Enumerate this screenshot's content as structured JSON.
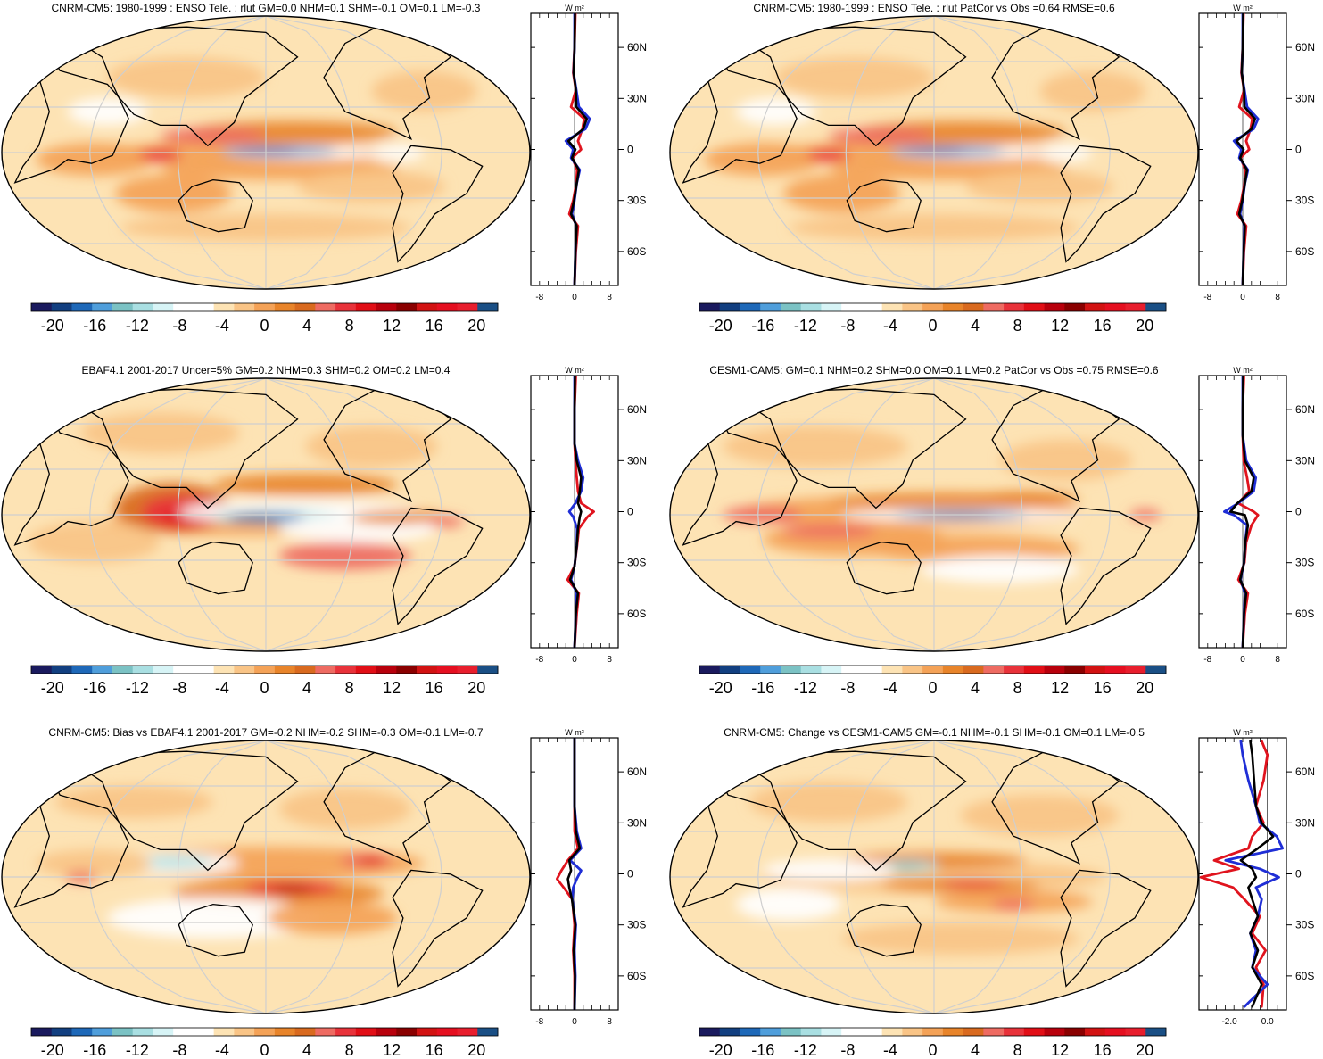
{
  "figure": {
    "colorbar": {
      "colors": [
        "#1a1a5e",
        "#123f80",
        "#1e68b8",
        "#4f9edb",
        "#7bc2c4",
        "#a9dfe2",
        "#d7f4f6",
        "#ffffff",
        "#ffffff",
        "#fde3b4",
        "#f9c486",
        "#f4a257",
        "#e8842a",
        "#d96a1f",
        "#ee6b62",
        "#e8323a",
        "#e10e16",
        "#b8000c",
        "#8a0000",
        "#d21212",
        "#e50f20",
        "#e81e2d",
        "#1a4f85"
      ],
      "tick_labels": [
        "-20",
        "-16",
        "-12",
        "-8",
        "-4",
        "0",
        "4",
        "8",
        "12",
        "16",
        "20"
      ],
      "tick_values": [
        -20,
        -16,
        -12,
        -8,
        -4,
        0,
        4,
        8,
        12,
        16,
        20
      ],
      "range": [
        -22,
        22
      ]
    },
    "profile_units": "W m²",
    "lat_labels": [
      "60N",
      "30N",
      "0",
      "30S",
      "60S"
    ],
    "lat_values": [
      60,
      30,
      0,
      -30,
      -60
    ],
    "line_colors": {
      "red": "#e0141e",
      "blue": "#1f2ed6",
      "black": "#000000"
    }
  },
  "chart_data": [
    {
      "type": "heatmap",
      "title": "CNRM-CM5: 1980-1999 : ENSO Tele. : rlut GM=0.0 NHM=0.1 SHM=-0.1 OM=0.1 LM=-0.3",
      "profile": {
        "type": "line",
        "xlim": [
          -10,
          10
        ],
        "xticks": [
          -8,
          0,
          8
        ],
        "xtick_labels": [
          "-8",
          "0",
          "8"
        ],
        "ylim": [
          -80,
          80
        ],
        "series": [
          {
            "color": "red",
            "lat": [
              -80,
              -60,
              -45,
              -38,
              -30,
              -20,
              -12,
              -5,
              0,
              5,
              12,
              18,
              25,
              35,
              45,
              60,
              80
            ],
            "value": [
              0,
              0.3,
              0.8,
              -1.2,
              -0.3,
              0.4,
              0.6,
              -0.5,
              1.5,
              0.8,
              1.8,
              2.2,
              -0.8,
              0.3,
              -0.3,
              0,
              0.2
            ]
          },
          {
            "color": "blue",
            "lat": [
              -80,
              -60,
              -45,
              -38,
              -30,
              -20,
              -12,
              -5,
              0,
              5,
              12,
              18,
              25,
              35,
              45,
              60,
              80
            ],
            "value": [
              0,
              0.2,
              0.4,
              -0.6,
              0,
              0.5,
              1.2,
              -0.8,
              -0.3,
              -2.0,
              2.5,
              3.5,
              1.0,
              0.4,
              -0.2,
              0,
              0
            ]
          },
          {
            "color": "black",
            "lat": [
              -80,
              -60,
              -45,
              -38,
              -30,
              -20,
              -12,
              -5,
              0,
              5,
              12,
              18,
              25,
              35,
              45,
              60,
              80
            ],
            "value": [
              0,
              0.2,
              0.5,
              -0.8,
              -0.1,
              0.5,
              1.0,
              -0.6,
              0.2,
              -1.4,
              2.0,
              2.8,
              0.4,
              0.3,
              -0.2,
              0,
              0.1
            ]
          }
        ]
      }
    },
    {
      "type": "heatmap",
      "title": "CNRM-CM5: 1980-1999 : ENSO Tele. : rlut PatCor vs Obs =0.64 RMSE=0.6",
      "profile": {
        "type": "line",
        "xlim": [
          -10,
          10
        ],
        "xticks": [
          -8,
          0,
          8
        ],
        "xtick_labels": [
          "-8",
          "0",
          "8"
        ],
        "ylim": [
          -80,
          80
        ],
        "series": [
          {
            "color": "red",
            "lat": [
              -80,
              -60,
              -45,
              -38,
              -30,
              -20,
              -12,
              -5,
              0,
              5,
              12,
              18,
              25,
              35,
              45,
              60,
              80
            ],
            "value": [
              0,
              0.3,
              0.8,
              -1.2,
              -0.3,
              0.4,
              0.6,
              -0.5,
              1.5,
              0.8,
              1.8,
              2.2,
              -0.8,
              0.3,
              -0.3,
              0,
              0.2
            ]
          },
          {
            "color": "blue",
            "lat": [
              -80,
              -60,
              -45,
              -38,
              -30,
              -20,
              -12,
              -5,
              0,
              5,
              12,
              18,
              25,
              35,
              45,
              60,
              80
            ],
            "value": [
              0,
              0.2,
              0.4,
              -0.6,
              0,
              0.5,
              1.2,
              -0.8,
              -0.3,
              -2.0,
              2.5,
              3.5,
              1.0,
              0.4,
              -0.2,
              0,
              0
            ]
          },
          {
            "color": "black",
            "lat": [
              -80,
              -60,
              -45,
              -38,
              -30,
              -20,
              -12,
              -5,
              0,
              5,
              12,
              18,
              25,
              35,
              45,
              60,
              80
            ],
            "value": [
              0,
              0.2,
              0.5,
              -0.8,
              -0.1,
              0.5,
              1.0,
              -0.6,
              0.2,
              -1.4,
              2.0,
              2.8,
              0.4,
              0.3,
              -0.2,
              0,
              0.1
            ]
          }
        ]
      }
    },
    {
      "type": "heatmap",
      "title": "EBAF4.1 2001-2017 Uncer=5% GM=0.2 NHM=0.3 SHM=0.2 OM=0.2 LM=0.4",
      "profile": {
        "type": "line",
        "xlim": [
          -10,
          10
        ],
        "xticks": [
          -8,
          0,
          8
        ],
        "xtick_labels": [
          "-8",
          "0",
          "8"
        ],
        "ylim": [
          -80,
          80
        ],
        "series": [
          {
            "color": "red",
            "lat": [
              -80,
              -60,
              -48,
              -40,
              -32,
              -20,
              -10,
              -3,
              0,
              5,
              12,
              20,
              30,
              40,
              60,
              80
            ],
            "value": [
              0,
              0.5,
              1.0,
              -1.6,
              0,
              0.6,
              1.0,
              3.0,
              4.4,
              1.5,
              0.8,
              0.5,
              0.2,
              0,
              0,
              0.3
            ]
          },
          {
            "color": "blue",
            "lat": [
              -80,
              -60,
              -48,
              -40,
              -32,
              -20,
              -10,
              -3,
              0,
              5,
              12,
              20,
              30,
              40,
              60,
              80
            ],
            "value": [
              0,
              0.3,
              0.5,
              -0.8,
              0,
              0.5,
              0.6,
              -0.3,
              -1.2,
              0.2,
              1.5,
              2.0,
              0.8,
              0,
              0,
              0
            ]
          },
          {
            "color": "black",
            "lat": [
              -80,
              -60,
              -48,
              -40,
              -32,
              -20,
              -10,
              -3,
              0,
              5,
              12,
              20,
              30,
              40,
              60,
              80
            ],
            "value": [
              0,
              0.3,
              0.8,
              -1.0,
              0,
              0.5,
              0.8,
              1.2,
              1.5,
              0.8,
              1.2,
              1.5,
              0.5,
              0,
              0,
              0.1
            ]
          }
        ]
      }
    },
    {
      "type": "heatmap",
      "title": "CESM1-CAM5: GM=0.1 NHM=0.2 SHM=0.0 OM=0.1 LM=0.2 PatCor vs Obs =0.75 RMSE=0.6",
      "profile": {
        "type": "line",
        "xlim": [
          -10,
          10
        ],
        "xticks": [
          -8,
          0,
          8
        ],
        "xtick_labels": [
          "-8",
          "0",
          "8"
        ],
        "ylim": [
          -80,
          80
        ],
        "series": [
          {
            "color": "red",
            "lat": [
              -80,
              -60,
              -48,
              -40,
              -30,
              -18,
              -8,
              -2,
              0,
              5,
              12,
              20,
              30,
              45,
              60,
              80
            ],
            "value": [
              0,
              0.5,
              1.2,
              -1.0,
              0.4,
              0.8,
              2.0,
              3.5,
              2.5,
              -1.0,
              1.5,
              1.0,
              0.2,
              0,
              0,
              0.3
            ]
          },
          {
            "color": "blue",
            "lat": [
              -80,
              -60,
              -48,
              -40,
              -30,
              -18,
              -8,
              -2,
              0,
              5,
              12,
              20,
              30,
              45,
              60,
              80
            ],
            "value": [
              0,
              0.3,
              0.5,
              -0.5,
              0.3,
              0.6,
              1.0,
              -2.0,
              -4.2,
              -1.0,
              2.5,
              3.0,
              0.8,
              0,
              0,
              0
            ]
          },
          {
            "color": "black",
            "lat": [
              -80,
              -60,
              -48,
              -40,
              -30,
              -18,
              -8,
              -2,
              0,
              5,
              12,
              20,
              30,
              45,
              60,
              80
            ],
            "value": [
              0,
              0.3,
              0.8,
              -0.6,
              0.3,
              0.6,
              1.2,
              0.5,
              -2.8,
              -1.2,
              2.0,
              2.5,
              0.5,
              0,
              0,
              0.1
            ]
          }
        ]
      }
    },
    {
      "type": "heatmap",
      "title": "CNRM-CM5: Bias vs EBAF4.1 2001-2017 GM=-0.2 NHM=-0.2 SHM=-0.3 OM=-0.1 LM=-0.7",
      "profile": {
        "type": "line",
        "xlim": [
          -10,
          10
        ],
        "xticks": [
          -8,
          0,
          8
        ],
        "xtick_labels": [
          "-8",
          "0",
          "8"
        ],
        "ylim": [
          -80,
          80
        ],
        "series": [
          {
            "color": "red",
            "lat": [
              -80,
              -60,
              -45,
              -30,
              -15,
              -8,
              -3,
              2,
              8,
              15,
              25,
              40,
              60,
              80
            ],
            "value": [
              0,
              0,
              -0.3,
              0,
              -0.5,
              -2.5,
              -4.0,
              -3.0,
              -1.5,
              0.8,
              0,
              0,
              0,
              0
            ]
          },
          {
            "color": "blue",
            "lat": [
              -80,
              -60,
              -45,
              -30,
              -15,
              -8,
              -3,
              2,
              8,
              15,
              25,
              40,
              60,
              80
            ],
            "value": [
              0,
              0.2,
              0,
              0.3,
              -0.5,
              -0.3,
              0.5,
              1.5,
              -1.0,
              1.5,
              0.5,
              0,
              0,
              0
            ]
          },
          {
            "color": "black",
            "lat": [
              -80,
              -60,
              -45,
              -30,
              -15,
              -8,
              -3,
              2,
              8,
              15,
              25,
              40,
              60,
              80
            ],
            "value": [
              0,
              0.1,
              -0.2,
              0.2,
              -0.6,
              -1.2,
              -1.5,
              -0.8,
              -1.2,
              1.2,
              0.3,
              0,
              0,
              0
            ]
          }
        ]
      }
    },
    {
      "type": "heatmap",
      "title": "CNRM-CM5: Change vs CESM1-CAM5 GM=-0.1 NHM=-0.1 SHM=-0.1 OM=0.1 LM=-0.5",
      "profile": {
        "type": "line",
        "xlim": [
          -3.6,
          1.0
        ],
        "xticks": [
          -2.0,
          0.0
        ],
        "xtick_labels": [
          "-2.0",
          "0.0"
        ],
        "ylim": [
          -80,
          80
        ],
        "series": [
          {
            "color": "red",
            "lat": [
              -78,
              -65,
              -55,
              -45,
              -35,
              -25,
              -15,
              -8,
              -2,
              3,
              8,
              15,
              22,
              30,
              40,
              55,
              70,
              78
            ],
            "value": [
              -0.3,
              -0.2,
              -0.6,
              -0.1,
              -0.8,
              -0.4,
              -1.2,
              -1.8,
              -3.5,
              -1.5,
              -2.8,
              -1.0,
              -0.8,
              -0.2,
              -0.6,
              -0.2,
              0,
              -0.3
            ]
          },
          {
            "color": "blue",
            "lat": [
              -78,
              -65,
              -55,
              -45,
              -35,
              -25,
              -15,
              -8,
              -2,
              3,
              8,
              15,
              22,
              30,
              40,
              55,
              70,
              78
            ],
            "value": [
              -1.2,
              0,
              -0.8,
              -0.6,
              -0.9,
              -0.5,
              -0.3,
              -0.6,
              0.6,
              -0.4,
              -2.2,
              0.8,
              0.5,
              -0.4,
              -0.6,
              -1.0,
              -1.3,
              -1.4
            ]
          },
          {
            "color": "black",
            "lat": [
              -78,
              -65,
              -55,
              -45,
              -35,
              -25,
              -15,
              -8,
              -2,
              3,
              8,
              15,
              22,
              30,
              40,
              55,
              70,
              78
            ],
            "value": [
              -0.8,
              -0.3,
              -0.8,
              -0.5,
              -0.9,
              -0.5,
              -0.8,
              -1.0,
              -0.6,
              -0.8,
              -1.4,
              -0.5,
              0.3,
              -0.3,
              -0.6,
              -0.7,
              -0.8,
              -0.9
            ]
          }
        ]
      }
    }
  ]
}
